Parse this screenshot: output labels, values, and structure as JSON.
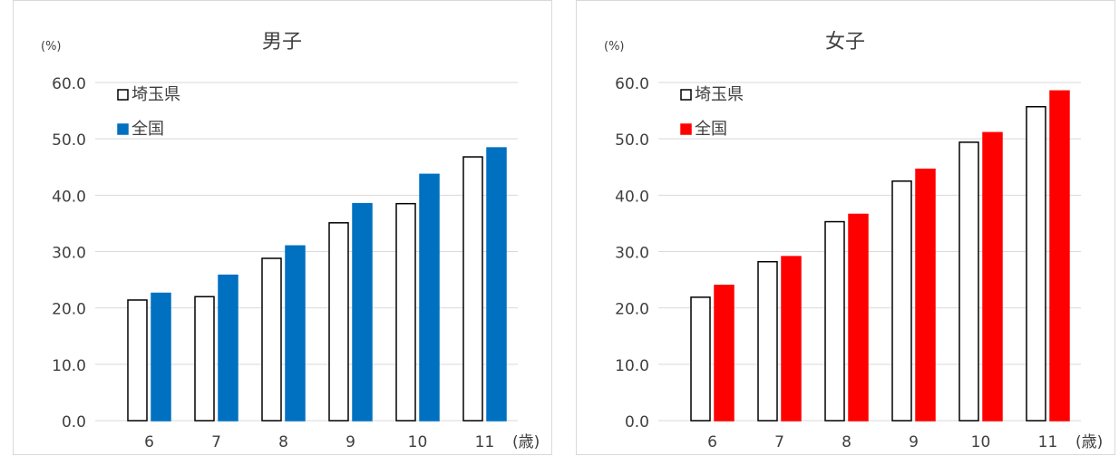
{
  "chart_data": [
    {
      "type": "bar",
      "title": "男子",
      "unit_label": "(%)",
      "x_unit_label": "(歳)",
      "categories": [
        "6",
        "7",
        "8",
        "9",
        "10",
        "11"
      ],
      "series": [
        {
          "name": "埼玉県",
          "values": [
            21.4,
            22.0,
            28.8,
            35.1,
            38.5,
            46.8
          ],
          "fill": "#ffffff",
          "stroke": "#000000"
        },
        {
          "name": "全国",
          "values": [
            22.6,
            25.8,
            31.0,
            38.5,
            43.7,
            48.4
          ],
          "fill": "#0070c0",
          "stroke": "#0070c0"
        }
      ],
      "ylim": [
        0,
        60
      ],
      "yticks": [
        "0.0",
        "10.0",
        "20.0",
        "30.0",
        "40.0",
        "50.0",
        "60.0"
      ],
      "grid": true,
      "legend_position": "top-left"
    },
    {
      "type": "bar",
      "title": "女子",
      "unit_label": "(%)",
      "x_unit_label": "(歳)",
      "categories": [
        "6",
        "7",
        "8",
        "9",
        "10",
        "11"
      ],
      "series": [
        {
          "name": "埼玉県",
          "values": [
            21.9,
            28.2,
            35.3,
            42.5,
            49.4,
            55.7
          ],
          "fill": "#ffffff",
          "stroke": "#000000"
        },
        {
          "name": "全国",
          "values": [
            24.0,
            29.1,
            36.6,
            44.6,
            51.1,
            58.5
          ],
          "fill": "#ff0000",
          "stroke": "#ff0000"
        }
      ],
      "ylim": [
        0,
        60
      ],
      "yticks": [
        "0.0",
        "10.0",
        "20.0",
        "30.0",
        "40.0",
        "50.0",
        "60.0"
      ],
      "grid": true,
      "legend_position": "top-left"
    }
  ]
}
